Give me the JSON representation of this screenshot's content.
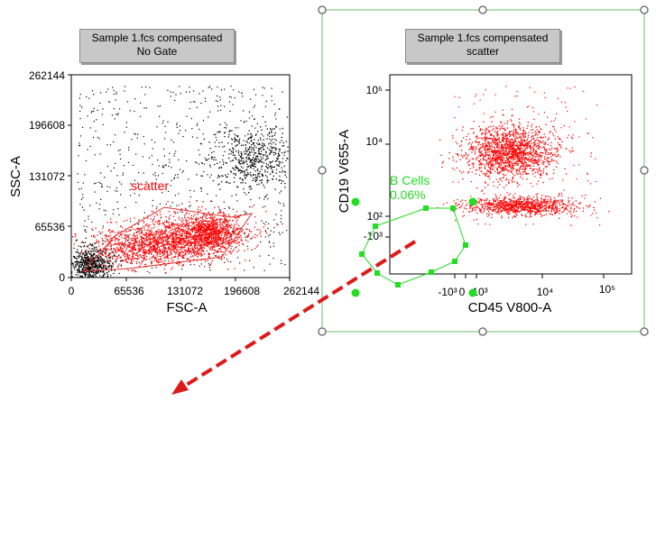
{
  "left_plot": {
    "header": {
      "line1": "Sample 1.fcs compensated",
      "line2": "No Gate"
    },
    "xlabel": "FSC-A",
    "ylabel": "SSC-A",
    "x_ticks": [
      "0",
      "65536",
      "131072",
      "196608",
      "262144"
    ],
    "y_ticks": [
      "0",
      "65536",
      "131072",
      "196608",
      "262144"
    ],
    "gate_label": "scatter",
    "gate_color": "#ff0000"
  },
  "right_plot": {
    "header": {
      "line1": "Sample 1.fcs compensated",
      "line2": "scatter"
    },
    "xlabel": "CD45 V800-A",
    "ylabel": "CD19 V655-A",
    "x_ticks": [
      "-10³",
      "0",
      "10³",
      "10⁴",
      "10⁵"
    ],
    "y_ticks": [
      "10⁵",
      "10⁴",
      "10²",
      "-10³"
    ],
    "gate_label": "B Cells",
    "gate_percent": "0.06%",
    "gate_color": "#22dd22"
  },
  "annotation": {
    "arrow_color": "#dd1a1a"
  },
  "chart_data": [
    {
      "type": "scatter",
      "title": "Sample 1.fcs compensated",
      "subtitle": "No Gate",
      "xlabel": "FSC-A",
      "ylabel": "SSC-A",
      "xlim": [
        0,
        262144
      ],
      "ylim": [
        0,
        262144
      ],
      "series": [
        {
          "name": "scatter",
          "color": "#ff0000"
        },
        {
          "color": "#000000"
        }
      ],
      "gates": [
        {
          "name": "scatter",
          "vertices": [
            [
              15000,
              6500
            ],
            [
              44000,
              48000
            ],
            [
              91000,
              84000
            ],
            [
              151000,
              72000
            ],
            [
              195000,
              12000
            ],
            [
              45000,
              2800
            ]
          ]
        }
      ]
    },
    {
      "type": "scatter",
      "title": "Sample 1.fcs compensated",
      "subtitle": "scatter",
      "xlabel": "CD45 V800-A",
      "ylabel": "CD19 V655-A",
      "x_scale": "biexponential",
      "y_scale": "biexponential",
      "series": [
        {
          "name": "scatter",
          "color": "#ff0000"
        }
      ],
      "gates": [
        {
          "name": "B Cells",
          "percent": 0.06,
          "color": "#22dd22"
        }
      ]
    }
  ]
}
